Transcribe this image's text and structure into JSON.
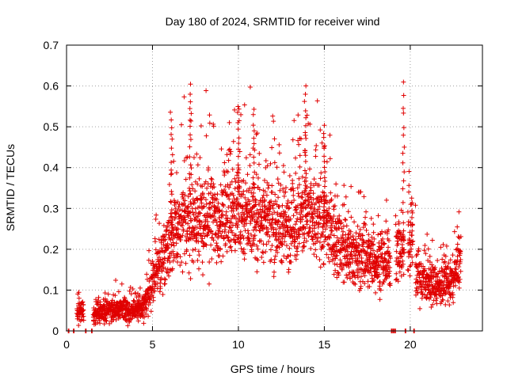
{
  "chart_data": {
    "type": "scatter",
    "title": "Day 180 of 2024, SRMTID for receiver wind",
    "xlabel": "GPS time / hours",
    "ylabel": "SRMTID / TECUs",
    "xlim": [
      0,
      24.2
    ],
    "ylim": [
      0,
      0.7
    ],
    "x_ticks": [
      0,
      5,
      10,
      15,
      20
    ],
    "y_ticks": [
      0,
      0.1,
      0.2,
      0.3,
      0.4,
      0.5,
      0.6,
      0.7
    ],
    "x_tick_labels": [
      "0",
      "5",
      "10",
      "15",
      "20"
    ],
    "y_tick_labels": [
      "0",
      "0.1",
      "0.2",
      "0.3",
      "0.4",
      "0.5",
      "0.6",
      "0.7"
    ],
    "grid": true,
    "marker": "+",
    "series_color": "#e00000",
    "series": [
      {
        "name": "SRMTID",
        "envelope": [
          {
            "x": 0.0,
            "y": 0.02
          },
          {
            "x": 0.5,
            "y": 0.03
          },
          {
            "x": 0.7,
            "y": 0.05
          },
          {
            "x": 1.0,
            "y": 0.05
          },
          {
            "x": 1.5,
            "y": 0.03
          },
          {
            "x": 2.0,
            "y": 0.05
          },
          {
            "x": 3.0,
            "y": 0.05
          },
          {
            "x": 4.0,
            "y": 0.05
          },
          {
            "x": 4.5,
            "y": 0.06
          },
          {
            "x": 5.0,
            "y": 0.12
          },
          {
            "x": 5.5,
            "y": 0.17
          },
          {
            "x": 6.0,
            "y": 0.22
          },
          {
            "x": 6.5,
            "y": 0.25
          },
          {
            "x": 7.0,
            "y": 0.27
          },
          {
            "x": 8.0,
            "y": 0.27
          },
          {
            "x": 9.0,
            "y": 0.27
          },
          {
            "x": 10.0,
            "y": 0.29
          },
          {
            "x": 11.0,
            "y": 0.28
          },
          {
            "x": 12.0,
            "y": 0.26
          },
          {
            "x": 13.0,
            "y": 0.26
          },
          {
            "x": 14.0,
            "y": 0.28
          },
          {
            "x": 15.0,
            "y": 0.26
          },
          {
            "x": 16.0,
            "y": 0.2
          },
          {
            "x": 17.0,
            "y": 0.18
          },
          {
            "x": 18.0,
            "y": 0.17
          },
          {
            "x": 18.6,
            "y": 0.16
          },
          {
            "x": 19.5,
            "y": 0.2
          },
          {
            "x": 20.0,
            "y": 0.19
          },
          {
            "x": 20.5,
            "y": 0.13
          },
          {
            "x": 21.5,
            "y": 0.11
          },
          {
            "x": 22.5,
            "y": 0.12
          },
          {
            "x": 22.9,
            "y": 0.18
          }
        ],
        "peaks": [
          {
            "x": 6.1,
            "y": 0.54
          },
          {
            "x": 7.2,
            "y": 0.6
          },
          {
            "x": 10.0,
            "y": 0.55
          },
          {
            "x": 10.9,
            "y": 0.52
          },
          {
            "x": 13.9,
            "y": 0.6
          },
          {
            "x": 15.0,
            "y": 0.5
          },
          {
            "x": 19.6,
            "y": 0.6
          },
          {
            "x": 20.1,
            "y": 0.32
          }
        ],
        "gaps": [
          {
            "from": 0.0,
            "to": 0.6,
            "baseline_points": [
              0.1,
              0.4
            ]
          },
          {
            "from": 1.0,
            "to": 1.55,
            "baseline_points": [
              1.1,
              1.45
            ]
          },
          {
            "from": 18.85,
            "to": 19.15,
            "baseline_points": [
              18.9,
              19.0,
              19.1
            ]
          },
          {
            "from": 19.65,
            "to": 19.85,
            "baseline_points": [
              19.7
            ]
          },
          {
            "from": 20.05,
            "to": 20.3,
            "baseline_points": [
              20.2
            ]
          }
        ]
      }
    ]
  }
}
